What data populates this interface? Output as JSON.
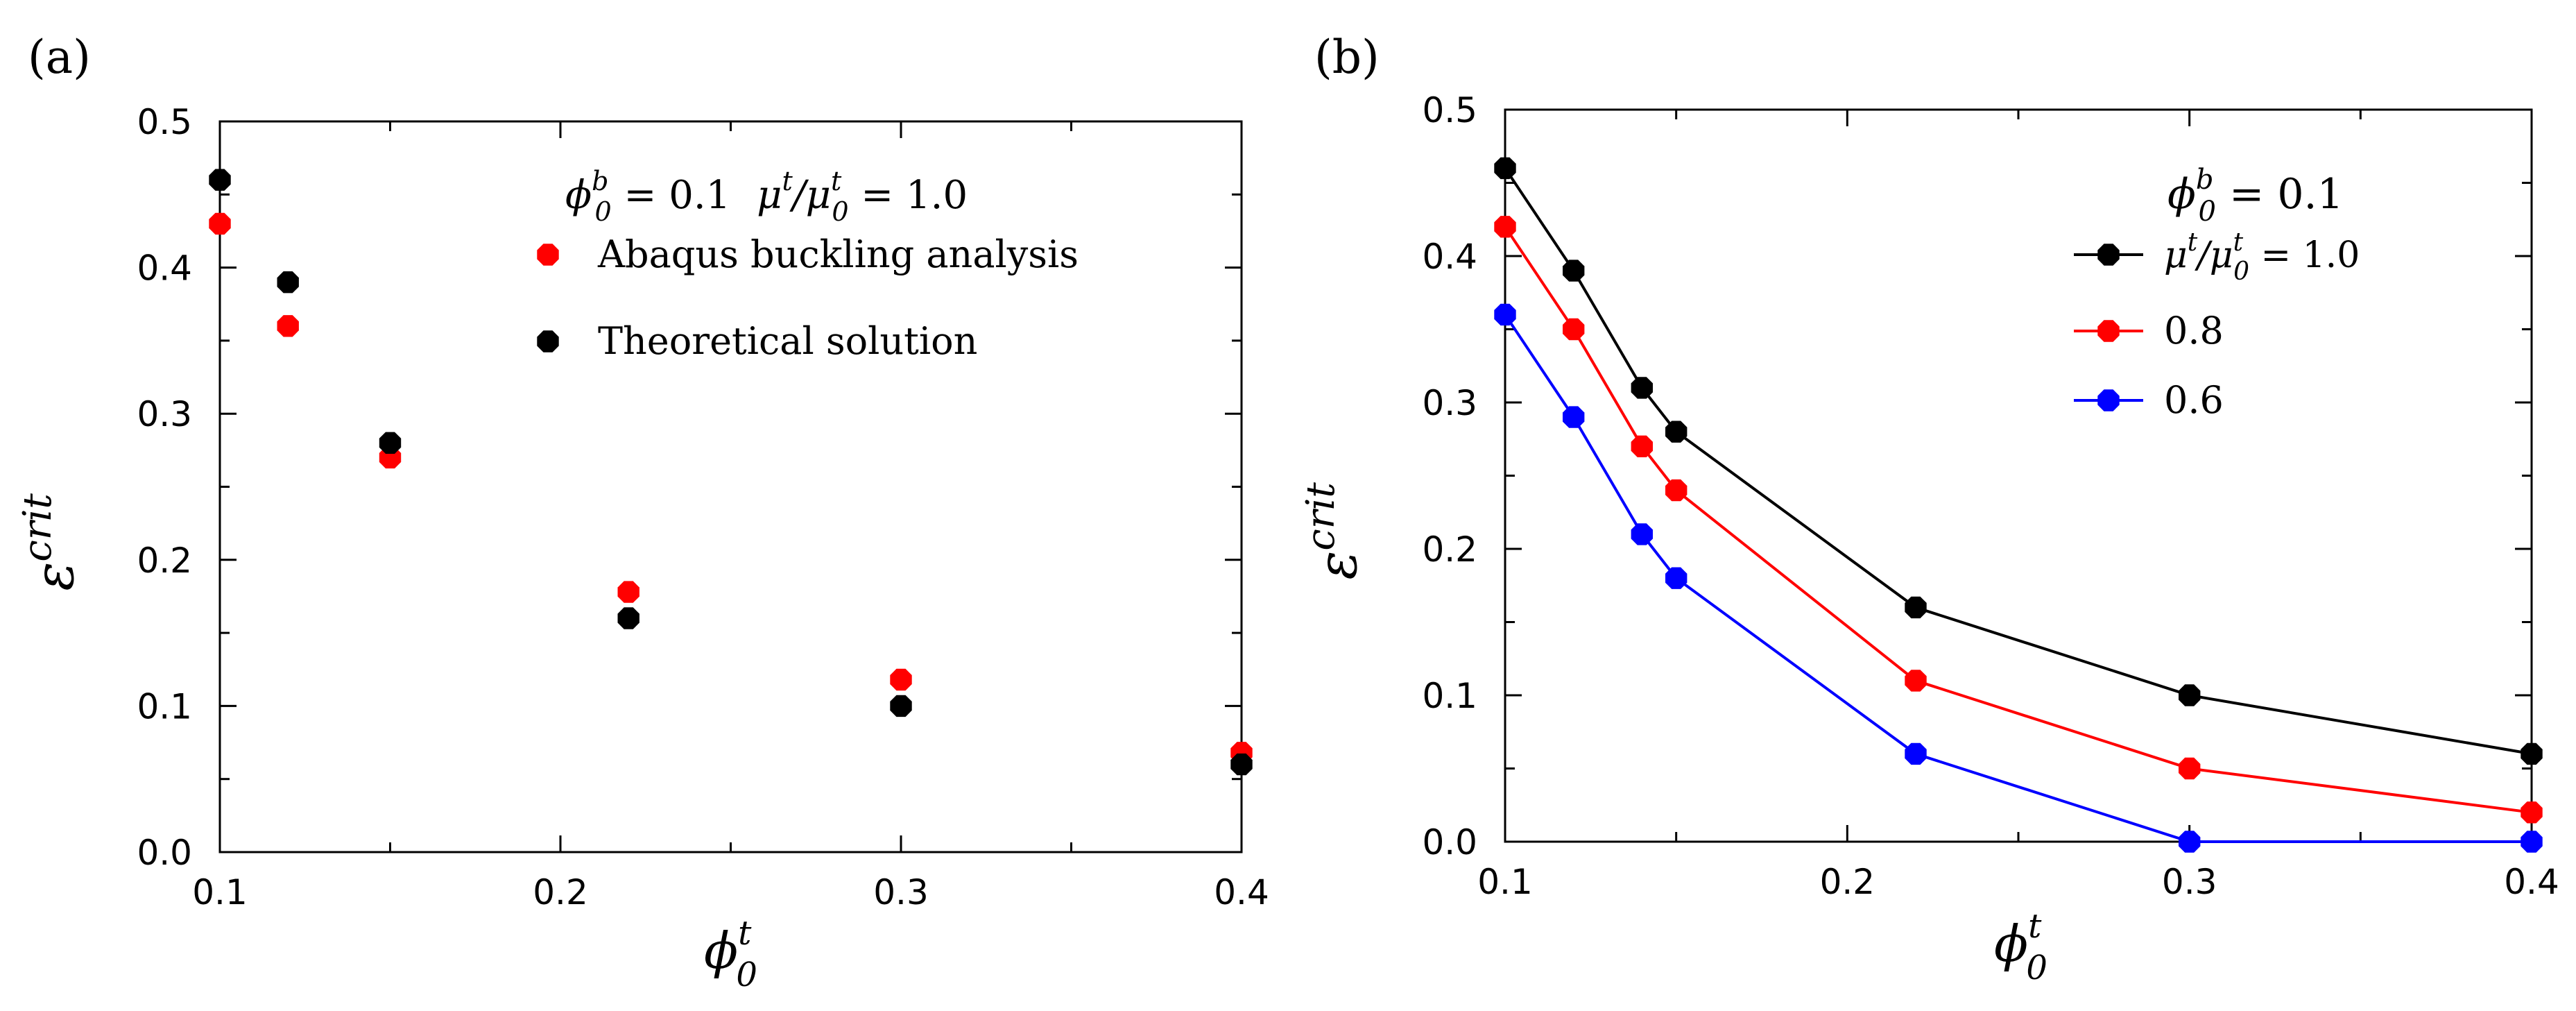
{
  "chart_data": [
    {
      "panel": "(a)",
      "type": "scatter",
      "xlabel": {
        "symbol": "ϕ",
        "sup": "t",
        "sub": "0"
      },
      "ylabel": {
        "symbol": "ε",
        "sup": "crit"
      },
      "xlim": [
        0.1,
        0.4
      ],
      "ylim": [
        0.0,
        0.5
      ],
      "xticks": [
        0.1,
        0.2,
        0.3,
        0.4
      ],
      "xtick_labels": [
        "0.1",
        "0.2",
        "0.3",
        "0.4"
      ],
      "yticks": [
        0.0,
        0.1,
        0.2,
        0.3,
        0.4,
        0.5
      ],
      "ytick_labels": [
        "0.0",
        "0.1",
        "0.2",
        "0.3",
        "0.4",
        "0.5"
      ],
      "legend_header": {
        "symbol": "ϕ",
        "sup": "b",
        "sub": "0",
        "value": "= 0.1",
        "ratio_num": "μ",
        "ratio_num_sup": "t",
        "ratio_den": "μ",
        "ratio_den_sup": "t",
        "ratio_den_sub": "0",
        "ratio_value": "= 1.0"
      },
      "series": [
        {
          "name": "Abaqus buckling analysis",
          "color": "#ff0000",
          "x": [
            0.1,
            0.12,
            0.15,
            0.22,
            0.3,
            0.4
          ],
          "y": [
            0.43,
            0.36,
            0.27,
            0.178,
            0.118,
            0.068
          ]
        },
        {
          "name": "Theoretical solution",
          "color": "#000000",
          "x": [
            0.1,
            0.12,
            0.15,
            0.22,
            0.3,
            0.4
          ],
          "y": [
            0.46,
            0.39,
            0.28,
            0.16,
            0.1,
            0.06
          ]
        }
      ]
    },
    {
      "panel": "(b)",
      "type": "line",
      "xlabel": {
        "symbol": "ϕ",
        "sup": "t",
        "sub": "0"
      },
      "ylabel": {
        "symbol": "ε",
        "sup": "crit"
      },
      "xlim": [
        0.1,
        0.4
      ],
      "ylim": [
        0.0,
        0.5
      ],
      "xticks": [
        0.1,
        0.2,
        0.3,
        0.4
      ],
      "xtick_labels": [
        "0.1",
        "0.2",
        "0.3",
        "0.4"
      ],
      "yticks": [
        0.0,
        0.1,
        0.2,
        0.3,
        0.4,
        0.5
      ],
      "ytick_labels": [
        "0.0",
        "0.1",
        "0.2",
        "0.3",
        "0.4",
        "0.5"
      ],
      "legend_header": {
        "symbol": "ϕ",
        "sup": "b",
        "sub": "0",
        "value": "= 0.1"
      },
      "first_entry": {
        "ratio_num": "μ",
        "ratio_num_sup": "t",
        "ratio_den": "μ",
        "ratio_den_sup": "t",
        "ratio_den_sub": "0",
        "ratio_value": "= 1.0"
      },
      "series": [
        {
          "name": "1.0",
          "color": "#000000",
          "x": [
            0.1,
            0.12,
            0.14,
            0.15,
            0.22,
            0.3,
            0.4
          ],
          "y": [
            0.46,
            0.39,
            0.31,
            0.28,
            0.16,
            0.1,
            0.06
          ]
        },
        {
          "name": "0.8",
          "color": "#ff0000",
          "x": [
            0.1,
            0.12,
            0.14,
            0.15,
            0.22,
            0.3,
            0.4
          ],
          "y": [
            0.42,
            0.35,
            0.27,
            0.24,
            0.11,
            0.05,
            0.02
          ]
        },
        {
          "name": "0.6",
          "color": "#0000ff",
          "x": [
            0.1,
            0.12,
            0.14,
            0.15,
            0.22,
            0.3,
            0.4
          ],
          "y": [
            0.36,
            0.29,
            0.21,
            0.18,
            0.06,
            0.0,
            0.0
          ]
        }
      ]
    }
  ]
}
